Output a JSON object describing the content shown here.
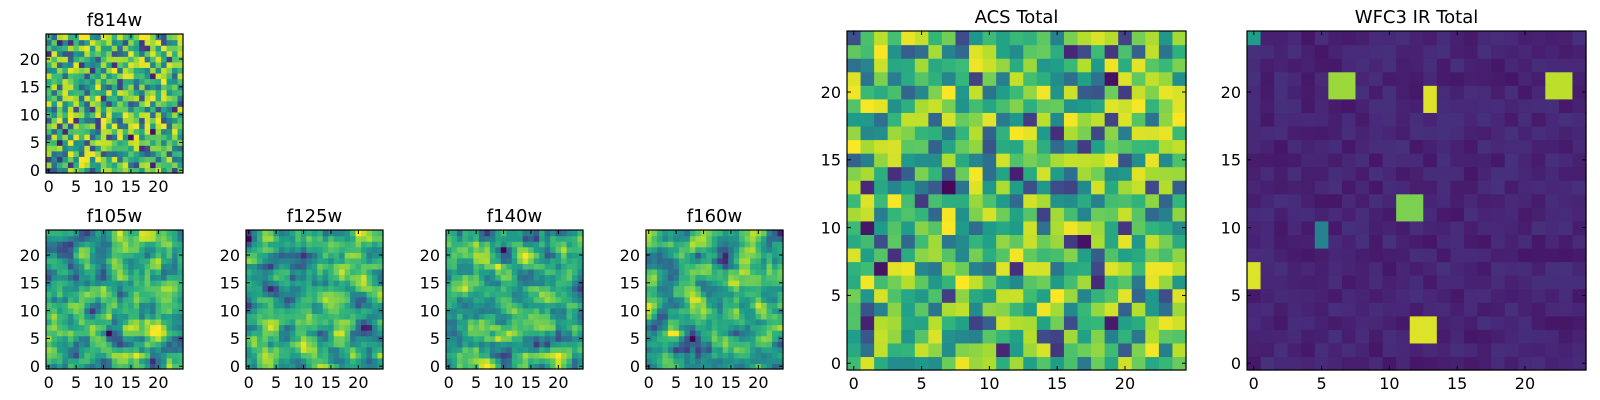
{
  "figure_title": "",
  "colormap": "viridis",
  "colors": {
    "vmin": "#440154",
    "low": "#3b528b",
    "mid": "#21908d",
    "high": "#5dc963",
    "vmax": "#fde725"
  },
  "chart_data": [
    {
      "id": "f814w",
      "type": "heatmap",
      "title": "f814w",
      "grid_size": 25,
      "pattern": "uniform-noise",
      "xticks": [
        "0",
        "5",
        "10",
        "15",
        "20"
      ],
      "yticks": [
        "0",
        "5",
        "10",
        "15",
        "20"
      ],
      "xlim": [
        0,
        25
      ],
      "ylim": [
        0,
        25
      ]
    },
    {
      "id": "f105w",
      "type": "heatmap",
      "title": "f105w",
      "grid_size": 25,
      "pattern": "smooth-noise",
      "xticks": [
        "0",
        "5",
        "10",
        "15",
        "20"
      ],
      "yticks": [
        "0",
        "5",
        "10",
        "15",
        "20"
      ],
      "xlim": [
        0,
        25
      ],
      "ylim": [
        0,
        25
      ]
    },
    {
      "id": "f125w",
      "type": "heatmap",
      "title": "f125w",
      "grid_size": 25,
      "pattern": "smooth-noise",
      "xticks": [
        "0",
        "5",
        "10",
        "15",
        "20"
      ],
      "yticks": [
        "0",
        "5",
        "10",
        "15",
        "20"
      ],
      "xlim": [
        0,
        25
      ],
      "ylim": [
        0,
        25
      ]
    },
    {
      "id": "f140w",
      "type": "heatmap",
      "title": "f140w",
      "grid_size": 25,
      "pattern": "smooth-noise",
      "xticks": [
        "0",
        "5",
        "10",
        "15",
        "20"
      ],
      "yticks": [
        "0",
        "5",
        "10",
        "15",
        "20"
      ],
      "xlim": [
        0,
        25
      ],
      "ylim": [
        0,
        25
      ]
    },
    {
      "id": "f160w",
      "type": "heatmap",
      "title": "f160w",
      "grid_size": 25,
      "pattern": "smooth-noise",
      "xticks": [
        "0",
        "5",
        "10",
        "15",
        "20"
      ],
      "yticks": [
        "0",
        "5",
        "10",
        "15",
        "20"
      ],
      "xlim": [
        0,
        25
      ],
      "ylim": [
        0,
        25
      ]
    },
    {
      "id": "acs-total",
      "type": "heatmap",
      "title": "ACS Total",
      "grid_size": 25,
      "pattern": "uniform-noise",
      "xticks": [
        "0",
        "5",
        "10",
        "15",
        "20"
      ],
      "yticks": [
        "0",
        "5",
        "10",
        "15",
        "20"
      ],
      "xlim": [
        0,
        25
      ],
      "ylim": [
        0,
        25
      ]
    },
    {
      "id": "wfc3-ir-total",
      "type": "heatmap",
      "title": "WFC3 IR Total",
      "grid_size": 25,
      "pattern": "sparse-sources",
      "background_level": 0.1,
      "sources": [
        {
          "x": 6,
          "y": 20,
          "w": 2,
          "h": 2,
          "value": 0.85
        },
        {
          "x": 13,
          "y": 19,
          "w": 1,
          "h": 2,
          "value": 0.95
        },
        {
          "x": 22,
          "y": 20,
          "w": 2,
          "h": 2,
          "value": 0.9
        },
        {
          "x": 11,
          "y": 11,
          "w": 2,
          "h": 2,
          "value": 0.8
        },
        {
          "x": 0,
          "y": 6,
          "w": 1,
          "h": 2,
          "value": 0.95
        },
        {
          "x": 12,
          "y": 2,
          "w": 2,
          "h": 2,
          "value": 0.95
        },
        {
          "x": 5,
          "y": 9,
          "w": 1,
          "h": 2,
          "value": 0.45
        },
        {
          "x": 0,
          "y": 24,
          "w": 1,
          "h": 1,
          "value": 0.55
        }
      ],
      "xticks": [
        "0",
        "5",
        "10",
        "15",
        "20"
      ],
      "yticks": [
        "0",
        "5",
        "10",
        "15",
        "20"
      ],
      "xlim": [
        0,
        25
      ],
      "ylim": [
        0,
        25
      ]
    }
  ]
}
